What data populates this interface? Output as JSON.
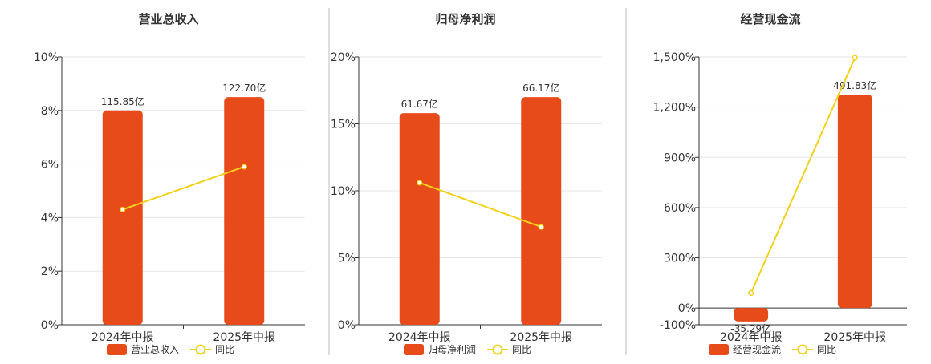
{
  "legend_yoy": "同比",
  "colors": {
    "bar": "#E84B1A",
    "line": "#F2D11B",
    "grid": "#E6E6E6",
    "axis": "#333333",
    "text": "#333333",
    "separator": "#BBBBBB"
  },
  "chart_data": [
    {
      "type": "bar",
      "title": "营业总收入",
      "series_name": "营业总收入",
      "categories": [
        "2024年中报",
        "2025年中报"
      ],
      "bar_values": [
        8.0,
        8.5
      ],
      "bar_labels": [
        "115.85亿",
        "122.70亿"
      ],
      "yoy_values": [
        4.3,
        5.9
      ],
      "ylim": [
        0,
        10
      ],
      "yticks": [
        0,
        2,
        4,
        6,
        8,
        10
      ],
      "ytick_labels": [
        "0%",
        "2%",
        "4%",
        "6%",
        "8%",
        "10%"
      ]
    },
    {
      "type": "bar",
      "title": "归母净利润",
      "series_name": "归母净利润",
      "categories": [
        "2024年中报",
        "2025年中报"
      ],
      "bar_values": [
        15.8,
        17.0
      ],
      "bar_labels": [
        "61.67亿",
        "66.17亿"
      ],
      "yoy_values": [
        10.6,
        7.3
      ],
      "ylim": [
        0,
        20
      ],
      "yticks": [
        0,
        5,
        10,
        15,
        20
      ],
      "ytick_labels": [
        "0%",
        "5%",
        "10%",
        "15%",
        "20%"
      ]
    },
    {
      "type": "bar",
      "title": "经营现金流",
      "series_name": "经营现金流",
      "categories": [
        "2024年中报",
        "2025年中报"
      ],
      "bar_values": [
        -80,
        1275
      ],
      "bar_labels": [
        "-35.29亿",
        "491.83亿"
      ],
      "yoy_values": [
        90,
        1495
      ],
      "ylim": [
        -100,
        1500
      ],
      "yticks": [
        -100,
        0,
        300,
        600,
        900,
        1200,
        1500
      ],
      "ytick_labels": [
        "-100%",
        "0%",
        "300%",
        "600%",
        "900%",
        "1,200%",
        "1,500%"
      ]
    }
  ]
}
